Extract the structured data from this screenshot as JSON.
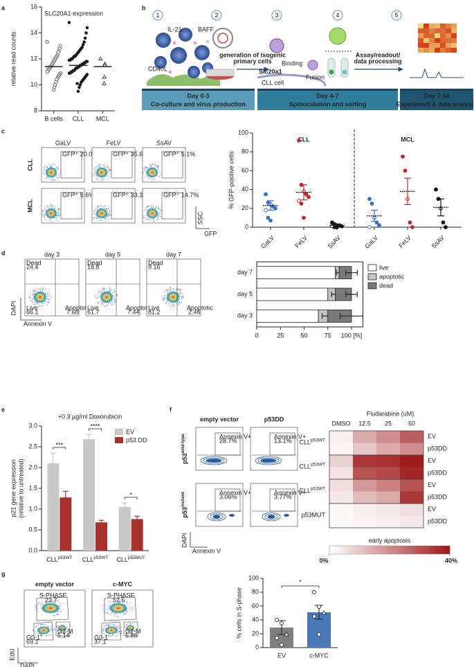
{
  "panel_labels": [
    "a",
    "b",
    "c",
    "d",
    "e",
    "f",
    "g"
  ],
  "diagram_b": {
    "steps": [
      "1",
      "2",
      "3",
      "4",
      "5"
    ],
    "labels": {
      "il21": "IL-21",
      "baff": "BAFF",
      "cd40l": "CD40L",
      "gen": [
        "generation of isogenic",
        "primary cells"
      ],
      "slc": "Slc20a1",
      "binding": "Binding",
      "fusion": "Fusion",
      "cll": "CLL cell",
      "assay": [
        "Assay/readout/",
        "data processing"
      ]
    },
    "phases": [
      {
        "day": "Day 0-3",
        "desc": "Co-culture and virus production"
      },
      {
        "day": "Day 4-7",
        "desc": "Spinoculation and sorting"
      },
      {
        "day": "Day 7-14",
        "desc": "Experiment & data analysis"
      }
    ]
  },
  "flow_c": {
    "columns": [
      "GaLV",
      "FeLV",
      "SsAV"
    ],
    "rows": [
      "CLL",
      "MCL"
    ],
    "gates": [
      [
        "GFP⁺ 20.0%",
        "GFP⁺ 35.6%",
        "GFP⁺ 5.1%"
      ],
      [
        "GFP⁺ 5.6%",
        "GFP⁺ 33.3%",
        "GFP⁺ 14.7%"
      ]
    ],
    "y_axis": "SSC",
    "x_axis": "GFP"
  },
  "flow_d": {
    "gate_names": {
      "dead": "Dead",
      "live": "Live",
      "apoptotic": "Apoptotic"
    },
    "plots": [
      {
        "title": "day 3",
        "dead": "24.4",
        "live": "66.1",
        "apoptotic": "7.60"
      },
      {
        "title": "day 5",
        "dead": "18.8",
        "live": "61.7",
        "apoptotic": "7.44"
      },
      {
        "title": "day 7",
        "dead": "9.16",
        "live": "81.2",
        "apoptotic": "2.46"
      }
    ],
    "y_axis": "DAPI",
    "x_axis": "Annexin V"
  },
  "flow_f": {
    "columns": [
      "empty vector",
      "p53DD"
    ],
    "rows": [
      {
        "label": "p53",
        "sup": "wild-type"
      },
      {
        "label": "p53",
        "sup": "mutant"
      }
    ],
    "gate_name": "Annexin V+",
    "gates": [
      [
        "28.7%",
        "13.1%"
      ],
      [
        "3.06%",
        "3.77%"
      ]
    ],
    "y_axis": "DAPI",
    "x_axis": "Annexin V"
  },
  "flow_g": {
    "gate_names": {
      "s": "S-PHASE",
      "g01": "G0-1",
      "g2m": "G2-M"
    },
    "plots": [
      {
        "title": "empty vector",
        "s": "23.7",
        "g01": "69.1",
        "g2m": "5.14"
      },
      {
        "title": "c-MYC",
        "s": "52.6",
        "g01": "37.1",
        "g2m": "5.86"
      }
    ],
    "y_axis": "EdU",
    "x_axis": "DAPI"
  },
  "chart_data": [
    {
      "type": "strip",
      "title": "SLC20A1-expression",
      "y_label": "relative read counts",
      "categories": [
        "B cells",
        "CLL",
        "MCL"
      ],
      "markers": [
        "open-circle",
        "filled-circle",
        "open-triangle"
      ],
      "points": [
        [
          13.3,
          13.0,
          12.8,
          12.6,
          12.5,
          12.3,
          12.2,
          12.1,
          12.0,
          11.9,
          11.8,
          11.7,
          11.6,
          11.5,
          11.4,
          11.4,
          11.3,
          11.2,
          11.1,
          11.0,
          10.9,
          10.8,
          10.7,
          10.6,
          10.5,
          10.4,
          10.2,
          10.0,
          9.8,
          9.6
        ],
        [
          14.8,
          14.4,
          14.0,
          13.6,
          13.3,
          13.1,
          12.9,
          12.8,
          12.7,
          12.6,
          12.5,
          12.4,
          12.3,
          12.2,
          12.2,
          12.1,
          12.0,
          12.0,
          11.9,
          11.9,
          11.8,
          11.8,
          11.7,
          11.7,
          11.6,
          11.6,
          11.5,
          11.5,
          11.4,
          11.4,
          11.3,
          11.3,
          11.2,
          11.1,
          11.1,
          11.0,
          11.0,
          10.9,
          10.9,
          10.8,
          10.7,
          10.6,
          10.5,
          10.4,
          10.3,
          10.2,
          10.0,
          9.8,
          9.5,
          10.1
        ],
        [
          12.0,
          11.6,
          11.5,
          10.6,
          10.1
        ]
      ],
      "medians": [
        11.4,
        11.5,
        11.4
      ],
      "ylim": [
        8,
        16
      ],
      "yticks": [
        8,
        10,
        12,
        14,
        16
      ]
    },
    {
      "type": "dotplot",
      "y_label": "% GFP-positive cells",
      "ylim": [
        0,
        100
      ],
      "yticks": [
        0,
        20,
        40,
        60,
        80,
        100
      ],
      "groups": [
        {
          "name": "CLL",
          "categories": [
            "GaLV",
            "FeLV",
            "SsAV"
          ],
          "colors": [
            "#3a6fbf",
            "#c0272d",
            "#111111"
          ],
          "points": [
            [
              35,
              26,
              24,
              22,
              20,
              18,
              10,
              7
            ],
            [
              92,
              45,
              38,
              35,
              32,
              28,
              25,
              10
            ],
            [
              5,
              3,
              2,
              2,
              1,
              1,
              0,
              0
            ]
          ],
          "means": [
            23,
            37,
            2
          ],
          "sem": [
            5,
            8,
            1
          ]
        },
        {
          "name": "MCL",
          "categories": [
            "GaLV",
            "FeLV",
            "SsAV"
          ],
          "colors": [
            "#3a6fbf",
            "#c0272d",
            "#111111"
          ],
          "points": [
            [
              30,
              25,
              10,
              5,
              2,
              0
            ],
            [
              75,
              60,
              30,
              5,
              0
            ],
            [
              40,
              30,
              20,
              5,
              0
            ]
          ],
          "means": [
            12,
            38,
            21
          ],
          "sem": [
            6,
            14,
            9
          ]
        }
      ]
    },
    {
      "type": "stacked-hbar",
      "categories": [
        "day 7",
        "day 5",
        "day 3"
      ],
      "xlim": [
        0,
        112
      ],
      "xticks": [
        0,
        25,
        50,
        75,
        {
          "value": 100,
          "label": "100 [%]"
        }
      ],
      "series": [
        {
          "name": "live",
          "color": "#ffffff",
          "values": [
            83,
            75,
            65
          ]
        },
        {
          "name": "apoptotic",
          "color": "#c4c4c4",
          "values": [
            4,
            8,
            10
          ],
          "errors": [
            3,
            4,
            6
          ]
        },
        {
          "name": "dead",
          "color": "#7a7a7a",
          "values": [
            13,
            17,
            25
          ],
          "errors": [
            6,
            6,
            12
          ]
        }
      ]
    },
    {
      "type": "grouped-bar",
      "title": "+0.3 µg/ml Doxorubicin",
      "y_label": [
        "p21 gene expression",
        "(relative to untreated)"
      ],
      "categories": [
        "CLL",
        "CLL",
        "CLL"
      ],
      "category_superscripts": [
        "p53WT",
        "p53WT",
        "p53MUT"
      ],
      "series": [
        {
          "name": "EV",
          "color": "#c8c8c8",
          "values": [
            2.1,
            2.68,
            1.05
          ],
          "errors": [
            0.25,
            0.12,
            0.1
          ]
        },
        {
          "name": "p53 DD",
          "color": "#a8322d",
          "values": [
            1.28,
            0.68,
            0.76
          ],
          "errors": [
            0.15,
            0.05,
            0.07
          ]
        }
      ],
      "significance": [
        "***",
        "****",
        "*"
      ],
      "ylim": [
        0,
        3
      ],
      "yticks": [
        {
          "value": 0,
          "label": "0.0"
        },
        0.5,
        {
          "value": 1,
          "label": "1.0"
        },
        1.5,
        {
          "value": 2,
          "label": "2.0"
        },
        2.5,
        {
          "value": 3,
          "label": "3.0"
        }
      ]
    },
    {
      "type": "heatmap",
      "column_title": "Fludarabine (uM)",
      "columns": [
        "DMSO",
        "12.5",
        "25",
        "50"
      ],
      "row_groups": [
        {
          "label": "CLL",
          "sup": "p53WT",
          "rows": [
            "EV",
            "p53DD"
          ],
          "values": [
            [
              3,
              15,
              20,
              28
            ],
            [
              2,
              10,
              15,
              20
            ]
          ]
        },
        {
          "label": "CLL",
          "sup": "p53WT",
          "rows": [
            "EV",
            "p53DD"
          ],
          "values": [
            [
              8,
              35,
              36,
              40
            ],
            [
              5,
              30,
              32,
              38
            ]
          ]
        },
        {
          "label": "CLL",
          "sup": "p53WT",
          "rows": [
            "EV",
            "p53DD"
          ],
          "values": [
            [
              6,
              18,
              22,
              30
            ],
            [
              4,
              12,
              15,
              35
            ]
          ]
        },
        {
          "label": "p53MUT",
          "rows": [
            "EV",
            "p53DD"
          ],
          "values": [
            [
              1,
              3,
              4,
              6
            ],
            [
              1,
              2,
              3,
              4
            ]
          ]
        }
      ],
      "colorbar_label": "early apoptosis",
      "vlim": [
        0,
        40
      ],
      "cticks": [
        {
          "value": 0,
          "label": "0%"
        },
        {
          "value": 40,
          "label": "40%"
        }
      ],
      "colors": [
        "#ffffff",
        "#9e1b1b"
      ]
    },
    {
      "type": "bar-points",
      "y_label": "% cells in S-phase",
      "categories": [
        "EV",
        "c-MYC"
      ],
      "values": [
        29,
        51
      ],
      "errors": [
        10,
        10
      ],
      "colors": [
        "#7f7f7f",
        "#4a78b8"
      ],
      "points": [
        [
          40,
          35,
          19,
          14,
          4
        ],
        [
          80,
          59,
          50,
          45,
          19
        ]
      ],
      "significance": "*",
      "ylim": [
        0,
        100
      ],
      "yticks": [
        0,
        20,
        40,
        60,
        80,
        100
      ]
    }
  ]
}
